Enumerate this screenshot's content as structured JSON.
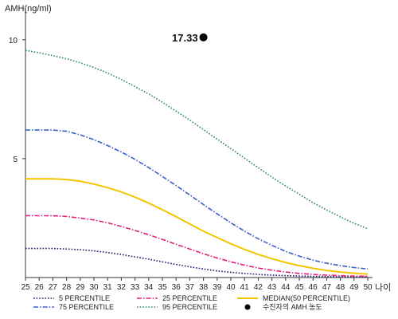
{
  "chart_data": {
    "type": "line",
    "ylabel": "AMH(ng/ml)",
    "xlabel": "나이",
    "x": [
      25,
      26,
      27,
      28,
      29,
      30,
      31,
      32,
      33,
      34,
      35,
      36,
      37,
      38,
      39,
      40,
      41,
      42,
      43,
      44,
      45,
      46,
      47,
      48,
      49,
      50
    ],
    "ylim": [
      0,
      11
    ],
    "xlim": [
      25,
      50
    ],
    "yticks": [
      5,
      10
    ],
    "grid": false,
    "legend_position": "bottom",
    "series": [
      {
        "name": "5 PERCENTILE",
        "color": "#1a1a6e",
        "style": "dotted",
        "values": [
          1.22,
          1.22,
          1.22,
          1.2,
          1.17,
          1.12,
          1.05,
          0.97,
          0.87,
          0.77,
          0.66,
          0.55,
          0.45,
          0.36,
          0.28,
          0.22,
          0.17,
          0.13,
          0.1,
          0.08,
          0.06,
          0.05,
          0.04,
          0.03,
          0.03,
          0.02
        ]
      },
      {
        "name": "75 PERCENTILE",
        "color": "#3a5fc8",
        "style": "dashdot",
        "values": [
          6.2,
          6.2,
          6.2,
          6.15,
          6.0,
          5.8,
          5.55,
          5.28,
          4.97,
          4.62,
          4.25,
          3.87,
          3.47,
          3.07,
          2.68,
          2.3,
          1.95,
          1.63,
          1.35,
          1.1,
          0.9,
          0.73,
          0.6,
          0.5,
          0.42,
          0.36
        ]
      },
      {
        "name": "25 PERCENTILE",
        "color": "#e0207a",
        "style": "dashdot",
        "values": [
          2.6,
          2.6,
          2.6,
          2.57,
          2.5,
          2.42,
          2.3,
          2.15,
          1.98,
          1.8,
          1.6,
          1.4,
          1.2,
          1.0,
          0.82,
          0.66,
          0.52,
          0.4,
          0.31,
          0.23,
          0.17,
          0.13,
          0.1,
          0.08,
          0.06,
          0.05
        ]
      },
      {
        "name": "95 PERCENTILE",
        "color": "#2e8b57",
        "style": "dotted",
        "values": [
          9.55,
          9.45,
          9.33,
          9.2,
          9.03,
          8.83,
          8.6,
          8.33,
          8.03,
          7.72,
          7.37,
          7.0,
          6.62,
          6.22,
          5.82,
          5.42,
          5.02,
          4.62,
          4.22,
          3.85,
          3.5,
          3.15,
          2.84,
          2.55,
          2.28,
          2.05
        ]
      },
      {
        "name": "MEDIAN(50 PERCENTILE)",
        "color": "#f2c500",
        "style": "solid",
        "values": [
          4.15,
          4.15,
          4.15,
          4.12,
          4.05,
          3.93,
          3.78,
          3.6,
          3.38,
          3.13,
          2.85,
          2.56,
          2.25,
          1.95,
          1.68,
          1.42,
          1.18,
          0.97,
          0.79,
          0.63,
          0.5,
          0.39,
          0.3,
          0.23,
          0.18,
          0.14
        ]
      }
    ],
    "point": {
      "name": "수진자의 AMH 농도",
      "x": 38,
      "y": 10.1,
      "label": "17.33",
      "color": "#000000"
    }
  }
}
